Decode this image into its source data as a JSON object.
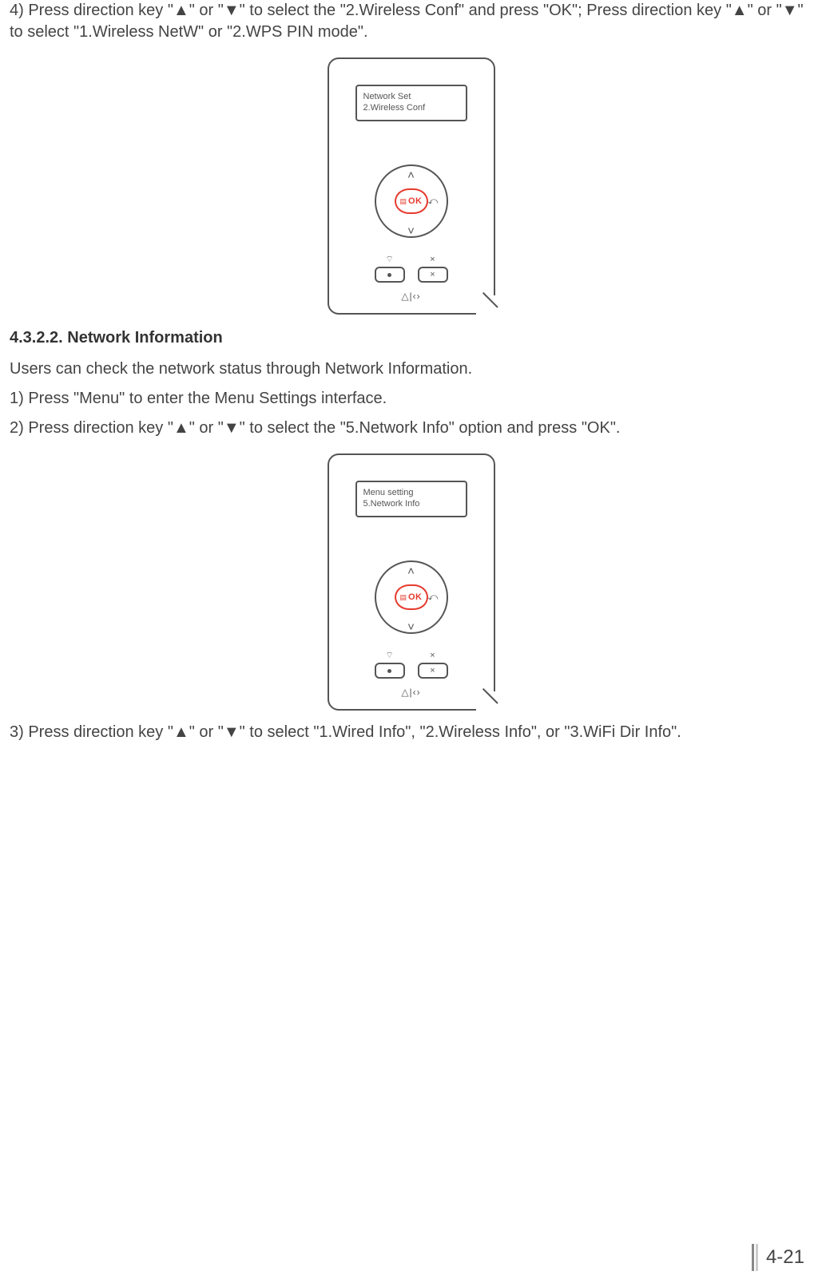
{
  "text": {
    "step4": "4) Press direction key \"▲\" or \"▼\" to select the \"2.Wireless Conf\" and press \"OK\"; Press direction key \"▲\" or \"▼\" to select \"1.Wireless NetW\" or \"2.WPS PIN mode\".",
    "heading": "4.3.2.2. Network Information",
    "intro": "Users can check the network status through Network Information.",
    "step1": "1) Press \"Menu\" to enter the Menu Settings interface.",
    "step2": "2) Press direction key \"▲\" or \"▼\" to select the \"5.Network Info\" option and press \"OK\".",
    "step3": "3) Press direction key \"▲\" or \"▼\" to select \"1.Wired Info\", \"2.Wireless Info\", or \"3.WiFi Dir Info\"."
  },
  "panel1": {
    "lcd_line1": "Network Set",
    "lcd_line2": "2.Wireless Conf",
    "ok": "OK",
    "menu_glyph": "▤",
    "back_glyph": "⤺",
    "chev_up": "˄",
    "chev_down": "˅",
    "wifi_glyph": "⌔",
    "x_top": "×",
    "x_btn": "×",
    "bottom_glyph": "△|‹›"
  },
  "panel2": {
    "lcd_line1": "Menu setting",
    "lcd_line2": "5.Network Info",
    "ok": "OK",
    "menu_glyph": "▤",
    "back_glyph": "⤺",
    "chev_up": "˄",
    "chev_down": "˅",
    "wifi_glyph": "⌔",
    "x_top": "×",
    "x_btn": "×",
    "bottom_glyph": "△|‹›"
  },
  "footer": {
    "page": "4-21",
    "bar_dark": "#888888",
    "bar_light": "#cccccc"
  },
  "colors": {
    "accent": "#e63a2e",
    "stroke": "#555555",
    "text": "#444444"
  }
}
